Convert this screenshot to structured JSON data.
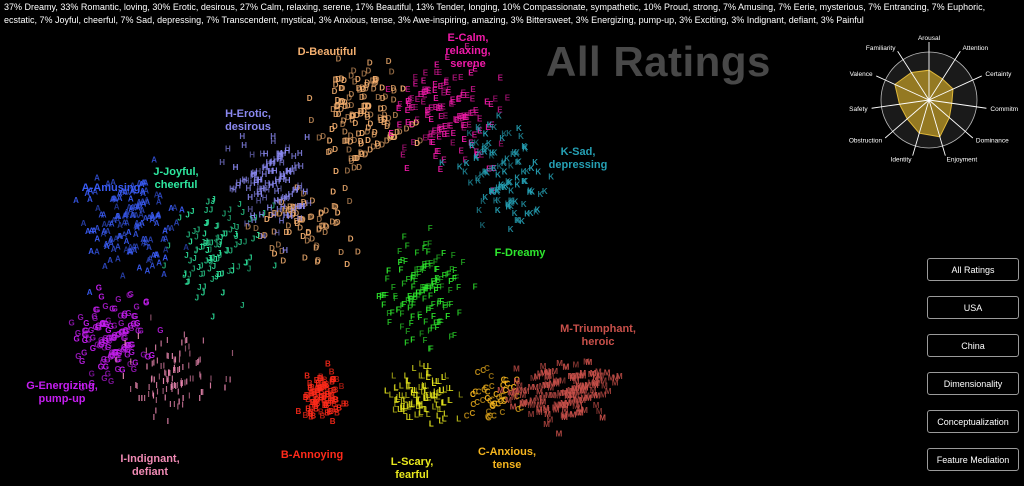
{
  "summary": "37% Dreamy, 33% Romantic, loving, 30% Erotic, desirous, 27% Calm, relaxing, serene, 17% Beautiful, 13% Tender, longing, 10% Compassionate, sympathetic, 10% Proud, strong, 7% Amusing, 7% Eerie, mysterious, 7% Entrancing, 7% Euphoric, ecstatic, 7% Joyful, cheerful, 7% Sad, depressing, 7% Transcendent, mystical, 3% Anxious, tense, 3% Awe-inspiring, amazing, 3% Bittersweet, 3% Energizing, pump-up, 3% Exciting, 3% Indignant, defiant, 3% Painful",
  "title": "All Ratings",
  "clusters": [
    {
      "id": "A",
      "line1": "A-Amusing",
      "line2": "",
      "color": "#3a5cf5"
    },
    {
      "id": "B",
      "line1": "B-Annoying",
      "line2": "",
      "color": "#ff2a1a"
    },
    {
      "id": "C",
      "line1": "C-Anxious,",
      "line2": "tense",
      "color": "#f5b51e"
    },
    {
      "id": "D",
      "line1": "D-Beautiful",
      "line2": "",
      "color": "#f5b070"
    },
    {
      "id": "E",
      "line1": "E-Calm,",
      "line2": "relaxing, serene",
      "color": "#f01aa8"
    },
    {
      "id": "F",
      "line1": "F-Dreamy",
      "line2": "",
      "color": "#2ee82e"
    },
    {
      "id": "G",
      "line1": "G-Energizing,",
      "line2": "pump-up",
      "color": "#c51ef0"
    },
    {
      "id": "H",
      "line1": "H-Erotic,",
      "line2": "desirous",
      "color": "#8a88f0"
    },
    {
      "id": "I",
      "line1": "I-Indignant,",
      "line2": "defiant",
      "color": "#f08ab4"
    },
    {
      "id": "J",
      "line1": "J-Joyful,",
      "line2": "cheerful",
      "color": "#2ee8a0"
    },
    {
      "id": "K",
      "line1": "K-Sad,",
      "line2": "depressing",
      "color": "#25a0b4"
    },
    {
      "id": "L",
      "line1": "L-Scary,",
      "line2": "fearful",
      "color": "#e8e81e"
    },
    {
      "id": "M",
      "line1": "M-Triumphant,",
      "line2": "heroic",
      "color": "#c8504a"
    }
  ],
  "radar": {
    "axes": [
      "Arousal",
      "Attention",
      "Certainty",
      "Commitment",
      "Dominance",
      "Enjoyment",
      "Identity",
      "Obstruction",
      "Safety",
      "Valence",
      "Familiarity"
    ],
    "values": [
      0.62,
      0.52,
      0.55,
      0.48,
      0.56,
      0.8,
      0.72,
      0.6,
      0.62,
      0.78,
      0.68
    ],
    "fill_color": "#c9a227"
  },
  "nav": {
    "all_ratings": "All Ratings",
    "usa": "USA",
    "china": "China",
    "dimensionality": "Dimensionality",
    "conceptualization": "Conceptualization",
    "feature_mediation": "Feature Mediation"
  }
}
